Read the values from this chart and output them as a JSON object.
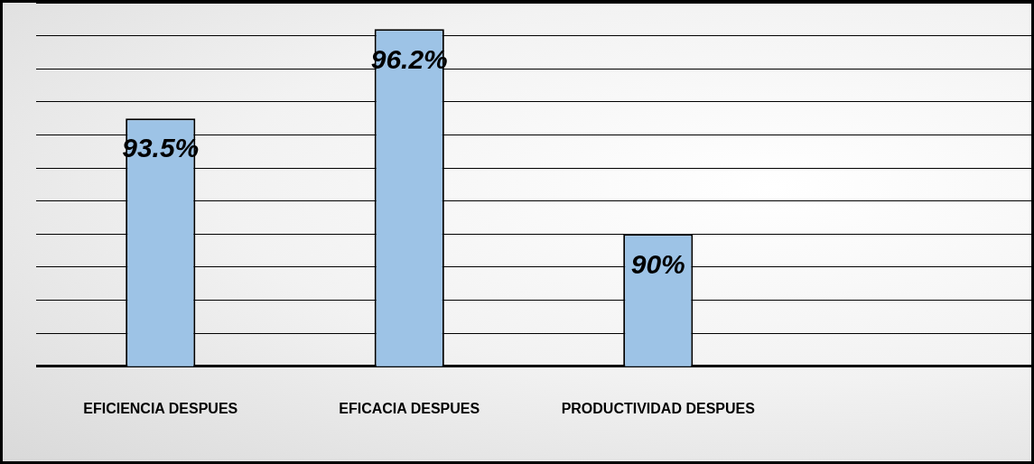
{
  "chart_data": {
    "type": "bar",
    "categories": [
      "EFICIENCIA DESPUES",
      "EFICACIA DESPUES",
      "PRODUCTIVIDAD DESPUES",
      null
    ],
    "values": [
      93.5,
      96.2,
      90,
      null
    ],
    "value_labels": [
      "93.5%",
      "96.2%",
      "90%",
      null
    ],
    "color": "#9dc3e6",
    "ylim": [
      86,
      97
    ],
    "grid": "y",
    "tick_labels": "x",
    "legend": false
  }
}
